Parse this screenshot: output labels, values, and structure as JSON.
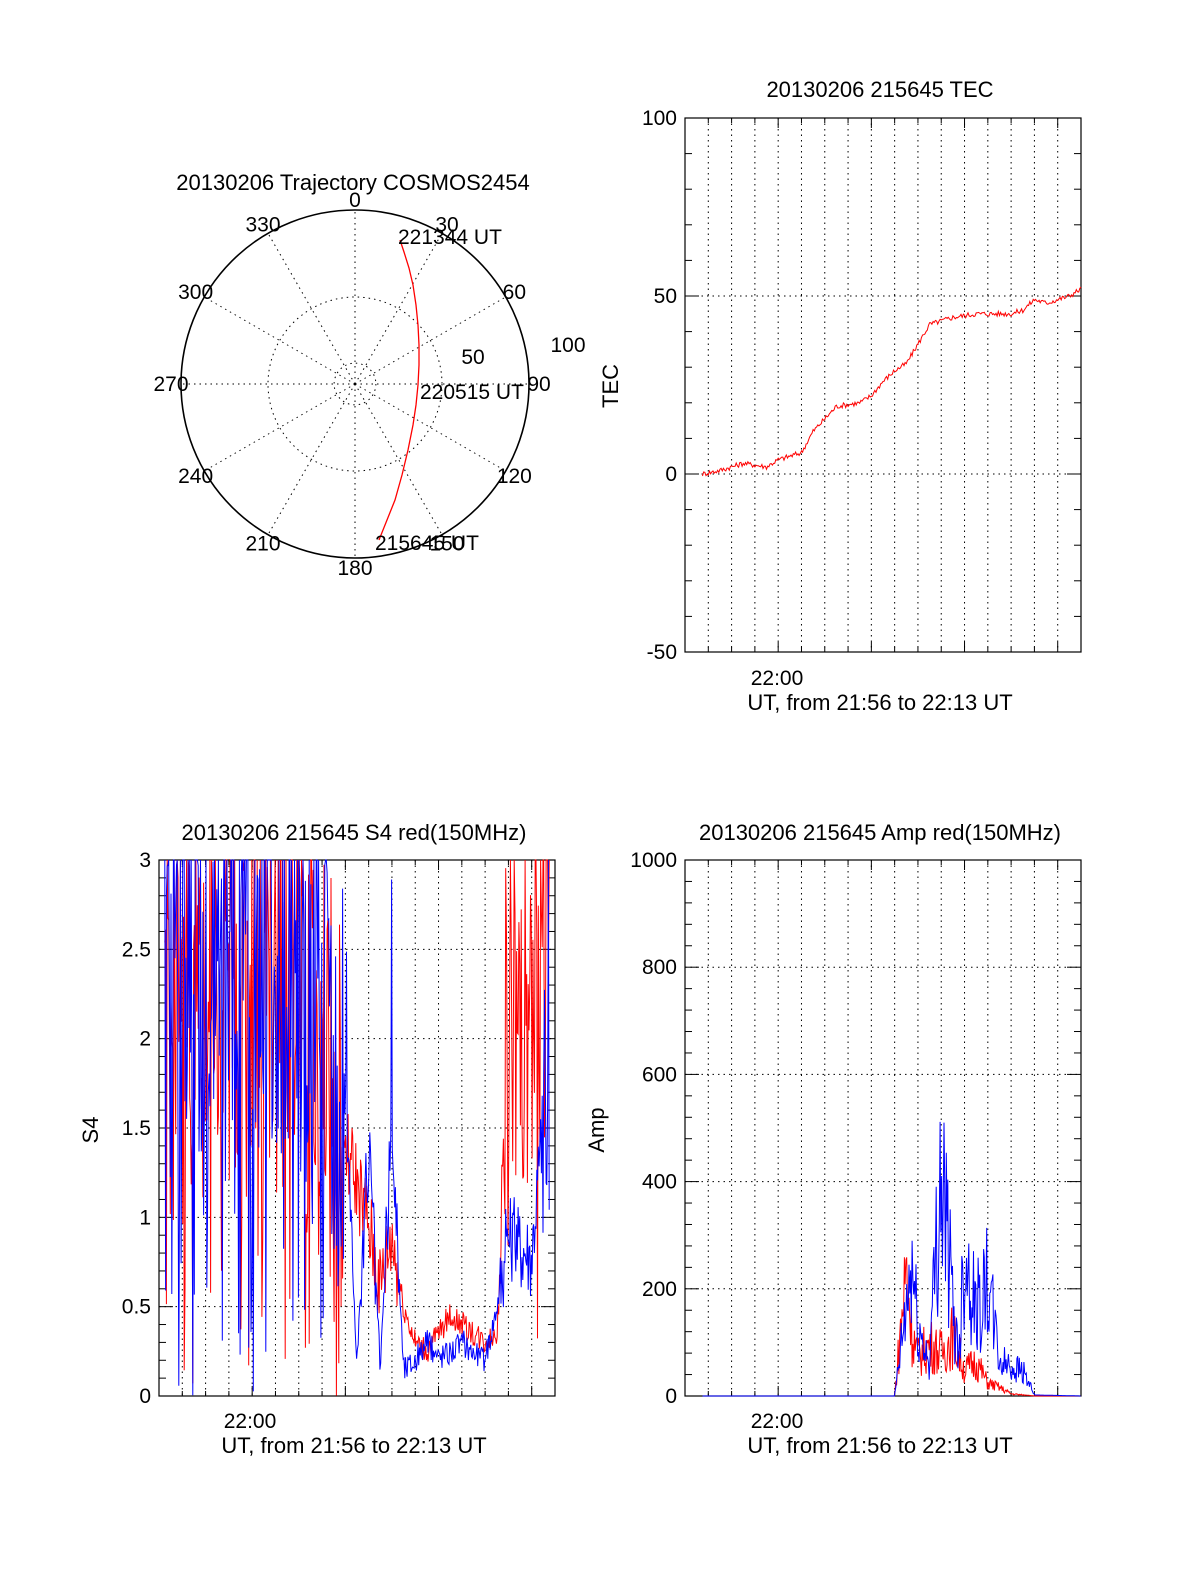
{
  "chart_data": [
    {
      "type": "polar",
      "title": "20130206 Trajectory COSMOS2454",
      "angle_labels": [
        "0",
        "30",
        "60",
        "90",
        "120",
        "150",
        "180",
        "210",
        "240",
        "270",
        "300",
        "330"
      ],
      "radius_labels": [
        "50",
        "100"
      ],
      "trajectory": {
        "color": "#ff0000",
        "points": [
          {
            "az": 23,
            "el": 14
          },
          {
            "az": 36,
            "el": 40
          },
          {
            "az": 54,
            "el": 58
          },
          {
            "az": 78,
            "el": 64
          },
          {
            "az": 102,
            "el": 62
          },
          {
            "az": 130,
            "el": 48
          },
          {
            "az": 154,
            "el": 18
          }
        ],
        "labels": [
          {
            "text": "221344 UT",
            "az": 23,
            "el": 14
          },
          {
            "text": "220515 UT",
            "az": 85,
            "el": 63
          },
          {
            "text": "215645 UT",
            "az": 154,
            "el": 18
          }
        ]
      }
    },
    {
      "type": "line",
      "title": "20130206 215645 TEC",
      "ylabel": "TEC",
      "xlabel": "UT, from 21:56 to 22:13 UT",
      "xlim": [
        "21:56",
        "22:13"
      ],
      "x_tick_label": "22:00",
      "ylim": [
        -50,
        100
      ],
      "yticks": [
        -50,
        0,
        50,
        100
      ],
      "series": [
        {
          "color": "#ff0000",
          "x": [
            "21:56:45",
            "21:57:30",
            "21:58:30",
            "21:59:30",
            "22:00:00",
            "22:00:30",
            "22:01:00",
            "22:01:30",
            "22:02:30",
            "22:03:30",
            "22:04:00",
            "22:04:30",
            "22:05:00",
            "22:05:30",
            "22:06:30",
            "22:07:30",
            "22:08:30",
            "22:09:30",
            "22:10:00",
            "22:10:30",
            "22:11:00",
            "22:11:30",
            "22:12:30",
            "22:13:00"
          ],
          "y": [
            0,
            1,
            3,
            2,
            4,
            5,
            6,
            12,
            19,
            20,
            22,
            26,
            29,
            31,
            42,
            44,
            45,
            45,
            45,
            46,
            49,
            48,
            50,
            52
          ]
        }
      ]
    },
    {
      "type": "line",
      "title": "20130206 215645 S4 red(150MHz)",
      "ylabel": "S4",
      "xlabel": "UT, from 21:56 to 22:13 UT",
      "xlim": [
        "21:56",
        "22:13"
      ],
      "x_tick_label": "22:00",
      "ylim": [
        0,
        3
      ],
      "yticks": [
        0,
        0.5,
        1,
        1.5,
        2,
        2.5,
        3
      ],
      "series": [
        {
          "color": "#ff0000",
          "x": [
            "21:56:15",
            "21:57:00",
            "21:58:00",
            "21:59:00",
            "22:00:00",
            "22:01:00",
            "22:02:00",
            "22:03:00",
            "22:04:00",
            "22:04:30",
            "22:05:00",
            "22:05:30",
            "22:06:00",
            "22:06:30",
            "22:07:00",
            "22:07:30",
            "22:08:00",
            "22:08:30",
            "22:09:00",
            "22:10:00",
            "22:10:30",
            "22:11:00",
            "22:12:00",
            "22:12:45"
          ],
          "y": [
            2.9,
            2.6,
            2.8,
            2.5,
            2.7,
            2.6,
            2.4,
            2.0,
            1.4,
            1.2,
            0.95,
            0.6,
            0.9,
            0.5,
            0.3,
            0.25,
            0.35,
            0.45,
            0.4,
            0.3,
            0.35,
            2.0,
            2.6,
            2.8
          ]
        },
        {
          "color": "#0000ff",
          "x": [
            "21:56:15",
            "21:57:00",
            "21:58:00",
            "21:59:00",
            "22:00:00",
            "22:01:00",
            "22:02:00",
            "22:03:00",
            "22:04:00",
            "22:04:30",
            "22:05:00",
            "22:05:30",
            "22:06:00",
            "22:06:30",
            "22:07:00",
            "22:07:30",
            "22:08:00",
            "22:08:30",
            "22:09:00",
            "22:10:00",
            "22:10:30",
            "22:11:00",
            "22:12:00",
            "22:12:45"
          ],
          "y": [
            2.8,
            2.7,
            2.9,
            2.6,
            2.8,
            2.7,
            2.5,
            2.3,
            1.7,
            0.2,
            1.4,
            0.15,
            1.5,
            0.15,
            0.2,
            0.3,
            0.22,
            0.25,
            0.3,
            0.2,
            0.5,
            0.9,
            0.8,
            2.0
          ]
        }
      ]
    },
    {
      "type": "line",
      "title": "20130206 215645 Amp red(150MHz)",
      "ylabel": "Amp",
      "xlabel": "UT, from 21:56 to 22:13 UT",
      "xlim": [
        "21:56",
        "22:13"
      ],
      "x_tick_label": "22:00",
      "ylim": [
        0,
        1000
      ],
      "yticks": [
        0,
        200,
        400,
        600,
        800,
        1000
      ],
      "series": [
        {
          "color": "#ff0000",
          "x": [
            "21:56:45",
            "22:04:00",
            "22:05:00",
            "22:05:30",
            "22:05:45",
            "22:06:00",
            "22:06:30",
            "22:07:00",
            "22:07:30",
            "22:08:00",
            "22:08:30",
            "22:09:00",
            "22:09:30",
            "22:10:00",
            "22:11:00",
            "22:13:00"
          ],
          "y": [
            0,
            0,
            0,
            300,
            150,
            90,
            120,
            100,
            140,
            60,
            80,
            30,
            20,
            5,
            0,
            0
          ]
        },
        {
          "color": "#0000ff",
          "x": [
            "21:56:45",
            "22:04:00",
            "22:05:00",
            "22:05:30",
            "22:05:45",
            "22:06:00",
            "22:06:30",
            "22:07:00",
            "22:07:30",
            "22:07:45",
            "22:08:00",
            "22:08:30",
            "22:09:00",
            "22:09:30",
            "22:10:00",
            "22:10:30",
            "22:11:00",
            "22:13:00"
          ],
          "y": [
            0,
            0,
            0,
            200,
            300,
            150,
            80,
            550,
            200,
            100,
            350,
            200,
            260,
            80,
            70,
            60,
            2,
            0
          ]
        }
      ]
    }
  ]
}
